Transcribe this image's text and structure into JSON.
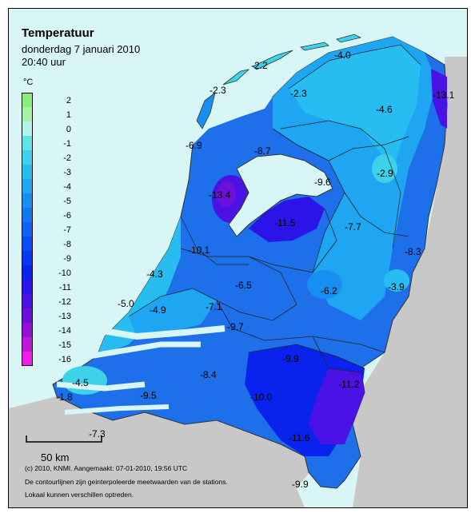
{
  "title": "Temperatuur",
  "date_line": "donderdag 7 januari 2010",
  "time_line": "20:40 uur",
  "legend": {
    "unit": "°C",
    "entries": [
      {
        "label": "2",
        "color": "#89ef7a"
      },
      {
        "label": "1",
        "color": "#a6f3a6"
      },
      {
        "label": "0",
        "color": "#b2f3ec"
      },
      {
        "label": "-1",
        "color": "#5ee6e6"
      },
      {
        "label": "-2",
        "color": "#3cd3ea"
      },
      {
        "label": "-3",
        "color": "#28bdf0"
      },
      {
        "label": "-4",
        "color": "#1ea6f2"
      },
      {
        "label": "-5",
        "color": "#178ff0"
      },
      {
        "label": "-6",
        "color": "#1477f2"
      },
      {
        "label": "-7",
        "color": "#1060f2"
      },
      {
        "label": "-8",
        "color": "#0c4af2"
      },
      {
        "label": "-9",
        "color": "#0a36f0"
      },
      {
        "label": "-10",
        "color": "#0a22ee"
      },
      {
        "label": "-11",
        "color": "#2a14e8"
      },
      {
        "label": "-12",
        "color": "#4a12e4"
      },
      {
        "label": "-13",
        "color": "#6e10dc"
      },
      {
        "label": "-14",
        "color": "#9410d6"
      },
      {
        "label": "-15",
        "color": "#bf18d8"
      },
      {
        "label": "-16",
        "color": "#f01ee8"
      }
    ]
  },
  "scale_bar": "50 km",
  "credits": [
    "(c) 2010, KNMI. Aangemaakt: 07-01-2010, 19:56 UTC",
    "De contourlijnen zijn geinterpoleerde meetwaarden van de stations.",
    "Lokaal kunnen verschillen optreden."
  ],
  "station_values": [
    "-2.2",
    "-4.0",
    "-2.3",
    "-2.3",
    "-13.1",
    "-4.6",
    "-6.9",
    "-8.7",
    "-9.6",
    "-2.9",
    "-13.4",
    "-11.5",
    "-7.7",
    "-10.1",
    "-8.3",
    "-4.3",
    "-6.5",
    "-6.2",
    "-3.9",
    "-5.0",
    "-4.9",
    "-7.1",
    "-9.7",
    "-9.9",
    "-11.2",
    "-4.5",
    "-8.4",
    "-1.8",
    "-9.5",
    "-10.0",
    "-7.3",
    "-11.6",
    "-9.9"
  ],
  "colors": {
    "sea": "#d8f6f6",
    "foreign_land": "#c8c8c8",
    "coast_zone": "#28bdf0",
    "cold_core": "#6e10dc"
  }
}
